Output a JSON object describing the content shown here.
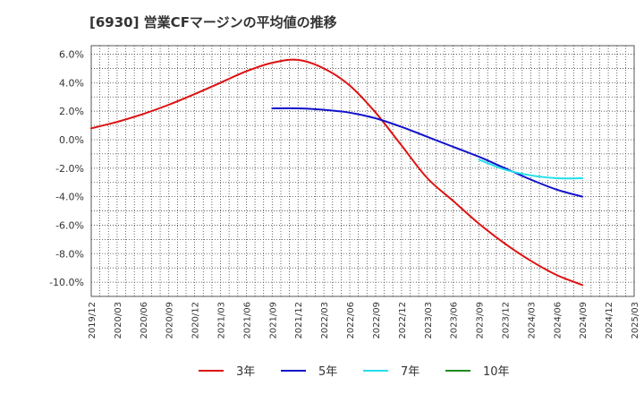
{
  "chart_data": {
    "type": "line",
    "title": "[6930]  営業CFマージンの平均値の推移",
    "x_tick_labels": [
      "2019/12",
      "2020/03",
      "2020/06",
      "2020/09",
      "2020/12",
      "2021/03",
      "2021/06",
      "2021/09",
      "2021/12",
      "2022/03",
      "2022/06",
      "2022/09",
      "2022/12",
      "2023/03",
      "2023/06",
      "2023/09",
      "2023/12",
      "2024/03",
      "2024/06",
      "2024/09",
      "2024/12",
      "2025/03"
    ],
    "y_tick_labels": [
      "6.0%",
      "4.0%",
      "2.0%",
      "0.0%",
      "-2.0%",
      "-4.0%",
      "-6.0%",
      "-8.0%",
      "-10.0%"
    ],
    "y_ticks": [
      6,
      4,
      2,
      0,
      -2,
      -4,
      -6,
      -8,
      -10
    ],
    "ylim": [
      -11,
      6.6
    ],
    "grid": true,
    "legend_position": "bottom",
    "series": [
      {
        "name": "3年",
        "color": "#dd1111",
        "points": [
          [
            "2019/12",
            0.8
          ],
          [
            "2020/03",
            1.25
          ],
          [
            "2020/06",
            1.8
          ],
          [
            "2020/09",
            2.45
          ],
          [
            "2020/12",
            3.2
          ],
          [
            "2021/03",
            4.0
          ],
          [
            "2021/06",
            4.8
          ],
          [
            "2021/09",
            5.4
          ],
          [
            "2021/12",
            5.6
          ],
          [
            "2022/03",
            5.0
          ],
          [
            "2022/06",
            3.8
          ],
          [
            "2022/09",
            1.9
          ],
          [
            "2022/12",
            -0.4
          ],
          [
            "2023/03",
            -2.7
          ],
          [
            "2023/06",
            -4.3
          ],
          [
            "2023/09",
            -5.9
          ],
          [
            "2023/12",
            -7.3
          ],
          [
            "2024/03",
            -8.5
          ],
          [
            "2024/06",
            -9.5
          ],
          [
            "2024/09",
            -10.2
          ]
        ]
      },
      {
        "name": "5年",
        "color": "#1111cc",
        "points": [
          [
            "2021/09",
            2.2
          ],
          [
            "2021/12",
            2.2
          ],
          [
            "2022/03",
            2.1
          ],
          [
            "2022/06",
            1.9
          ],
          [
            "2022/09",
            1.5
          ],
          [
            "2022/12",
            0.9
          ],
          [
            "2023/03",
            0.2
          ],
          [
            "2023/06",
            -0.5
          ],
          [
            "2023/09",
            -1.2
          ],
          [
            "2023/12",
            -2.0
          ],
          [
            "2024/03",
            -2.8
          ],
          [
            "2024/06",
            -3.5
          ],
          [
            "2024/09",
            -4.0
          ]
        ]
      },
      {
        "name": "7年",
        "color": "#22e0e8",
        "points": [
          [
            "2023/09",
            -1.4
          ],
          [
            "2023/12",
            -2.1
          ],
          [
            "2024/03",
            -2.5
          ],
          [
            "2024/06",
            -2.7
          ],
          [
            "2024/09",
            -2.7
          ]
        ]
      },
      {
        "name": "10年",
        "color": "#228b22",
        "points": []
      }
    ]
  }
}
